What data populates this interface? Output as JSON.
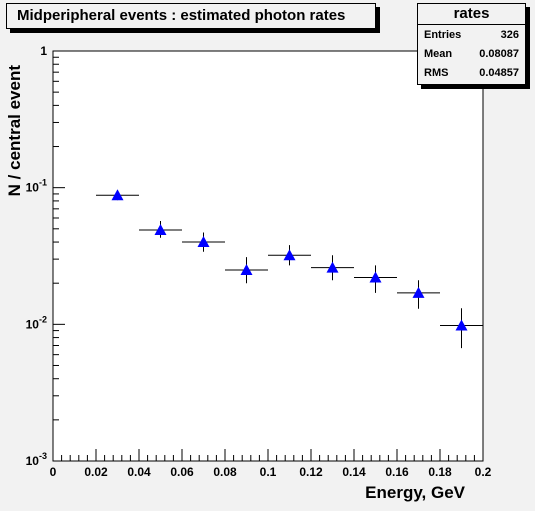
{
  "title": "Midperipheral events : estimated photon rates",
  "stats": {
    "name": "rates",
    "rows": [
      {
        "label": "Entries",
        "value": "326"
      },
      {
        "label": "Mean",
        "value": "0.08087"
      },
      {
        "label": "RMS",
        "value": "0.04857"
      }
    ]
  },
  "colors": {
    "background": "#f2f2f2",
    "frame": "#ffffff",
    "marker": "#0000ff",
    "axis": "#000000"
  },
  "chart_data": {
    "type": "scatter",
    "title": "Midperipheral events : estimated photon rates",
    "xlabel": "Energy, GeV",
    "ylabel": "N / central event",
    "xlim": [
      0,
      0.2
    ],
    "ylim": [
      0.001,
      1
    ],
    "yscale": "log",
    "grid": false,
    "x_tick_labels": [
      "0",
      "0.02",
      "0.04",
      "0.06",
      "0.08",
      "0.1",
      "0.12",
      "0.14",
      "0.16",
      "0.18",
      "0.2"
    ],
    "x_ticks": [
      0,
      0.02,
      0.04,
      0.06,
      0.08,
      0.1,
      0.12,
      0.14,
      0.16,
      0.18,
      0.2
    ],
    "y_ticks": [
      {
        "value": 1,
        "base": "1",
        "exp": ""
      },
      {
        "value": 0.1,
        "base": "10",
        "exp": "-1"
      },
      {
        "value": 0.01,
        "base": "10",
        "exp": "-2"
      },
      {
        "value": 0.001,
        "base": "10",
        "exp": "-3"
      }
    ],
    "marker": "triangle-up",
    "points": [
      {
        "x": 0.03,
        "xerr": 0.01,
        "y": 0.088,
        "ylo": 0.081,
        "yhi": 0.096
      },
      {
        "x": 0.05,
        "xerr": 0.01,
        "y": 0.049,
        "ylo": 0.043,
        "yhi": 0.057
      },
      {
        "x": 0.07,
        "xerr": 0.01,
        "y": 0.04,
        "ylo": 0.034,
        "yhi": 0.047
      },
      {
        "x": 0.09,
        "xerr": 0.01,
        "y": 0.025,
        "ylo": 0.02,
        "yhi": 0.031
      },
      {
        "x": 0.11,
        "xerr": 0.01,
        "y": 0.032,
        "ylo": 0.027,
        "yhi": 0.038
      },
      {
        "x": 0.13,
        "xerr": 0.01,
        "y": 0.026,
        "ylo": 0.021,
        "yhi": 0.032
      },
      {
        "x": 0.15,
        "xerr": 0.01,
        "y": 0.022,
        "ylo": 0.017,
        "yhi": 0.027
      },
      {
        "x": 0.17,
        "xerr": 0.01,
        "y": 0.017,
        "ylo": 0.013,
        "yhi": 0.021
      },
      {
        "x": 0.19,
        "xerr": 0.01,
        "y": 0.0098,
        "ylo": 0.0067,
        "yhi": 0.0131
      }
    ]
  }
}
